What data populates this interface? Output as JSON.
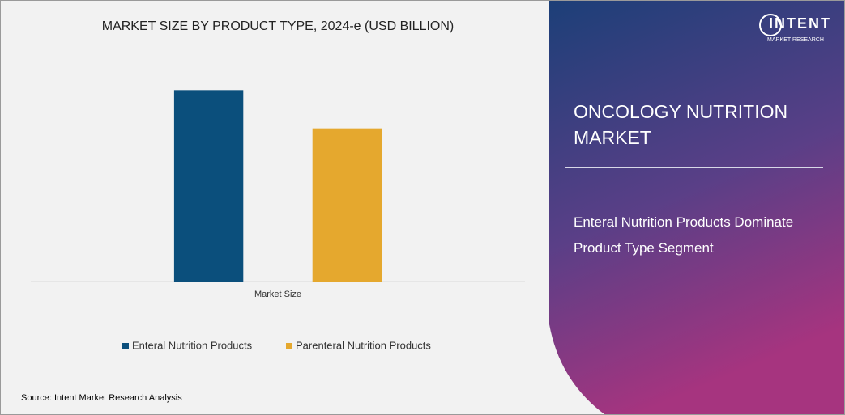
{
  "chart_data": {
    "type": "bar",
    "title": "MARKET SIZE BY PRODUCT TYPE, 2024-e (USD BILLION)",
    "categories": [
      "Market Size"
    ],
    "series": [
      {
        "name": "Enteral Nutrition Products",
        "color": "#0b4f7c",
        "values": [
          1.5
        ]
      },
      {
        "name": "Parenteral Nutrition Products",
        "color": "#e5a82e",
        "values": [
          1.2
        ]
      }
    ],
    "ylim": [
      0,
      1.8
    ],
    "legend": "bottom"
  },
  "panel": {
    "title": "ONCOLOGY NUTRITION MARKET",
    "subtitle": "Enteral Nutrition Products Dominate Product Type Segment"
  },
  "logo": {
    "name": "INTENT",
    "tagline": "MARKET RESEARCH"
  },
  "source": "Source: Intent Market Research Analysis"
}
